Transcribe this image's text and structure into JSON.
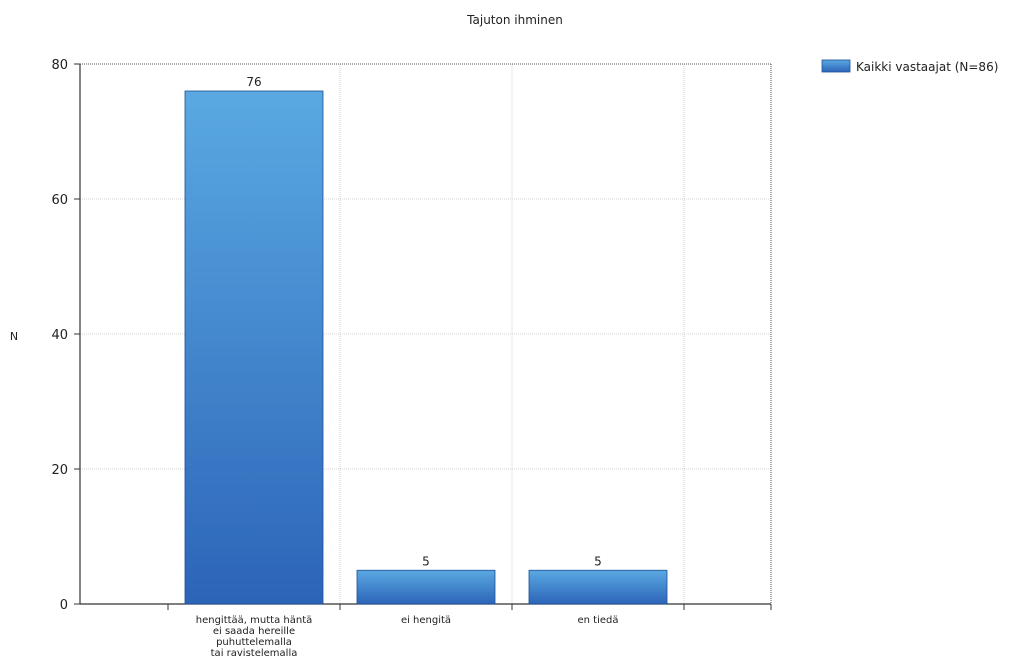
{
  "chart_data": {
    "type": "bar",
    "title": "Tajuton ihminen",
    "xlabel": "",
    "ylabel": "N",
    "ylim": [
      0,
      80
    ],
    "yticks": [
      0,
      20,
      40,
      60,
      80
    ],
    "categories": [
      [
        "hengittää, mutta häntä",
        "ei saada hereille",
        "puhuttelemalla",
        "tai ravistelemalla"
      ],
      [
        "ei hengitä"
      ],
      [
        "en tiedä"
      ]
    ],
    "series": [
      {
        "name": "Kaikki vastaajat (N=86)",
        "values": [
          76,
          5,
          5
        ]
      }
    ],
    "data_labels": [
      "76",
      "5",
      "5"
    ],
    "grid": true,
    "legend_position": "top-right",
    "colors": {
      "bar_top": "#5aa9e2",
      "bar_bottom": "#2c64b8",
      "bar_edge": "#1e4f95",
      "grid": "#c8c8c8",
      "axis": "#333333"
    }
  }
}
